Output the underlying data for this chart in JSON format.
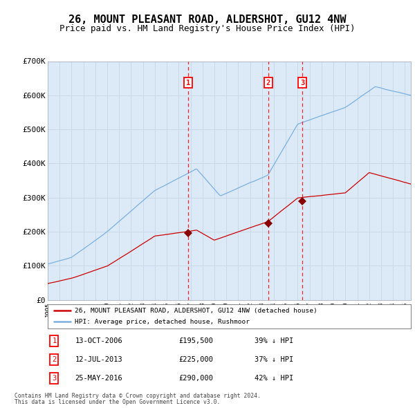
{
  "title": "26, MOUNT PLEASANT ROAD, ALDERSHOT, GU12 4NW",
  "subtitle": "Price paid vs. HM Land Registry's House Price Index (HPI)",
  "title_fontsize": 11,
  "subtitle_fontsize": 9,
  "bg_color": "#f0f0f0",
  "plot_bg_color": "#dce9f7",
  "grid_color": "#c8d8e8",
  "hpi_color": "#7ab0e0",
  "price_color": "#cc0000",
  "marker_color": "#880000",
  "xmin": 1995.0,
  "xmax": 2025.5,
  "ymin": 0,
  "ymax": 700000,
  "yticks": [
    0,
    100000,
    200000,
    300000,
    400000,
    500000,
    600000,
    700000
  ],
  "ytick_labels": [
    "£0",
    "£100K",
    "£200K",
    "£300K",
    "£400K",
    "£500K",
    "£600K",
    "£700K"
  ],
  "sales": [
    {
      "num": 1,
      "date": "13-OCT-2006",
      "x": 2006.79,
      "price": 195500,
      "pct": "39%",
      "dir": "↓"
    },
    {
      "num": 2,
      "date": "12-JUL-2013",
      "x": 2013.53,
      "price": 225000,
      "pct": "37%",
      "dir": "↓"
    },
    {
      "num": 3,
      "date": "25-MAY-2016",
      "x": 2016.4,
      "price": 290000,
      "pct": "42%",
      "dir": "↓"
    }
  ],
  "legend_price_label": "26, MOUNT PLEASANT ROAD, ALDERSHOT, GU12 4NW (detached house)",
  "legend_hpi_label": "HPI: Average price, detached house, Rushmoor",
  "footer1": "Contains HM Land Registry data © Crown copyright and database right 2024.",
  "footer2": "This data is licensed under the Open Government Licence v3.0."
}
